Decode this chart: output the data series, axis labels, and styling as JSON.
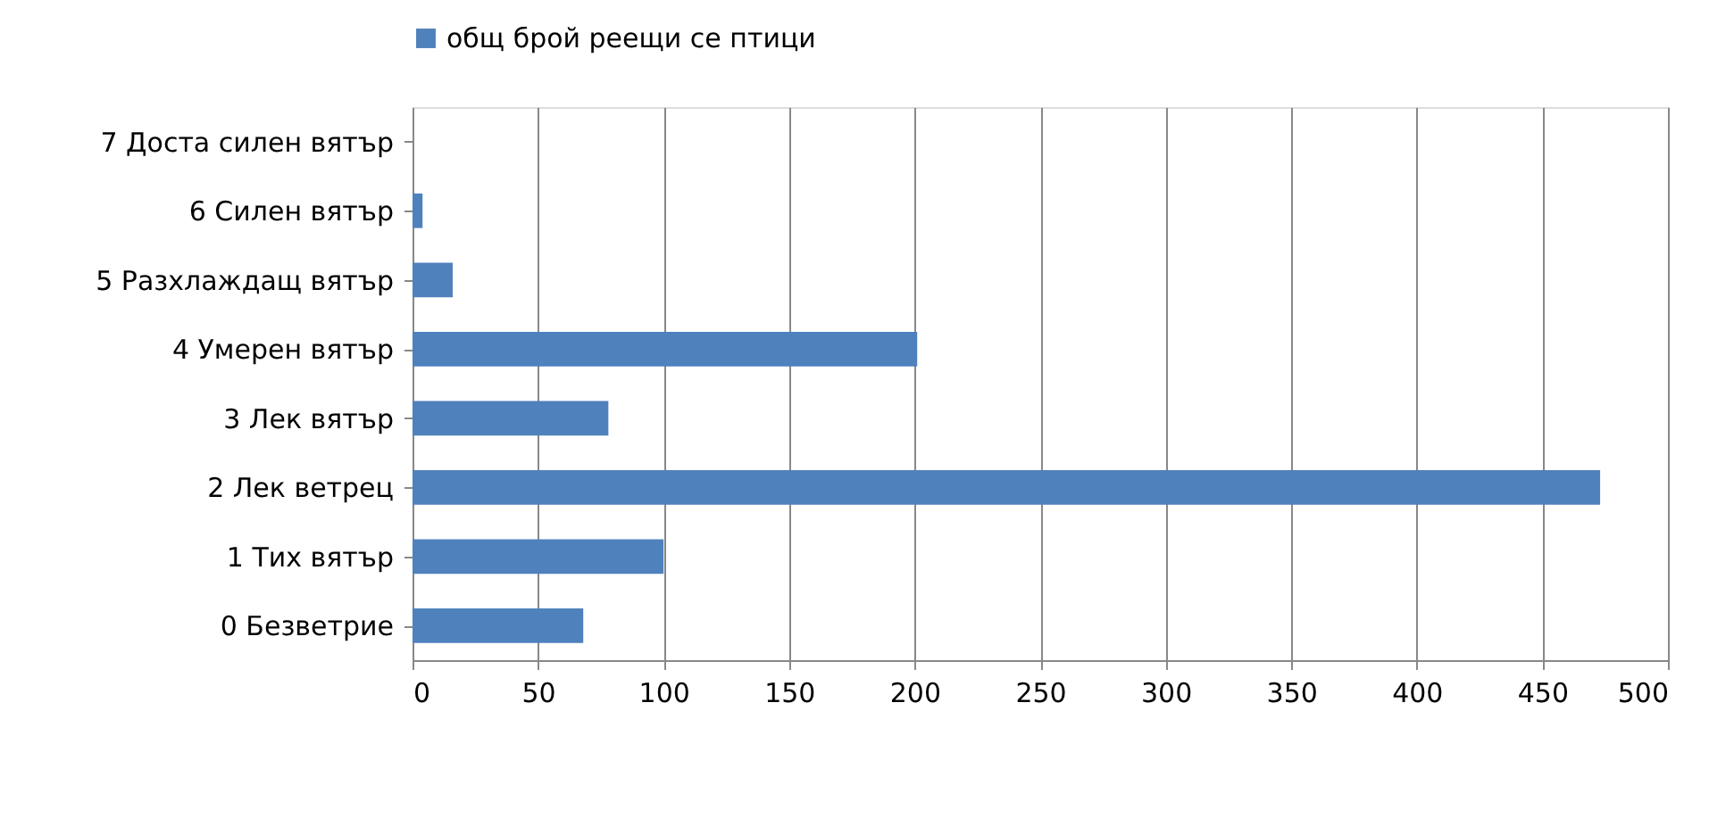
{
  "chart_data": {
    "type": "bar",
    "orientation": "horizontal",
    "categories": [
      "7 Доста силен вятър",
      "6 Силен вятър",
      "5 Разхлаждащ вятър",
      "4 Умерен вятър",
      "3 Лек вятър",
      "2 Лек ветрец",
      "1 Тих вятър",
      "0 Безветрие"
    ],
    "series": [
      {
        "name": "общ брой реещи се птици",
        "color": "#4f81bd",
        "values": [
          0,
          4,
          16,
          201,
          78,
          473,
          100,
          68
        ]
      }
    ],
    "xlim": [
      0,
      500
    ],
    "xticks": [
      0,
      50,
      100,
      150,
      200,
      250,
      300,
      350,
      400,
      450,
      500
    ],
    "grid": "x",
    "legend": "top"
  }
}
